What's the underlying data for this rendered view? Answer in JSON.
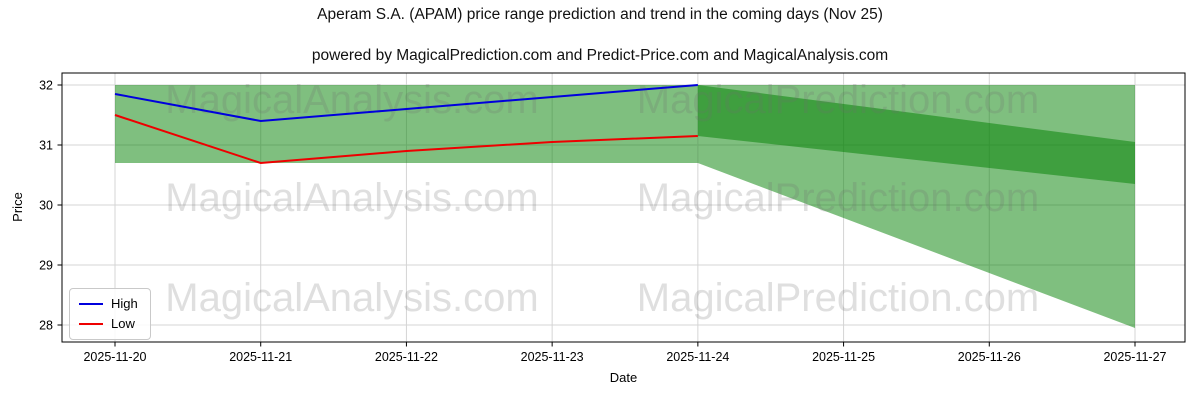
{
  "chart_data": {
    "type": "line",
    "title": "Aperam S.A. (APAM) price range prediction and trend in the coming days (Nov 25)",
    "subtitle": "powered by MagicalPrediction.com and Predict-Price.com and MagicalAnalysis.com",
    "xlabel": "Date",
    "ylabel": "Price",
    "categories": [
      "2025-11-20",
      "2025-11-21",
      "2025-11-22",
      "2025-11-23",
      "2025-11-24",
      "2025-11-25",
      "2025-11-26",
      "2025-11-27"
    ],
    "yticks": [
      28,
      29,
      30,
      31,
      32
    ],
    "ylim": [
      27.72,
      32.2
    ],
    "grid": true,
    "legend": {
      "position": "lower left",
      "entries": [
        "High",
        "Low"
      ]
    },
    "series": [
      {
        "name": "High",
        "color": "#0000dd",
        "days": [
          "2025-11-20",
          "2025-11-21",
          "2025-11-22",
          "2025-11-23",
          "2025-11-24"
        ],
        "values": [
          31.85,
          31.4,
          31.6,
          31.8,
          32.0
        ]
      },
      {
        "name": "Low",
        "color": "#ee0000",
        "days": [
          "2025-11-20",
          "2025-11-21",
          "2025-11-22",
          "2025-11-23",
          "2025-11-24"
        ],
        "values": [
          31.5,
          30.7,
          30.9,
          31.05,
          31.15
        ]
      }
    ],
    "bands": [
      {
        "name": "observed-range-band",
        "from": "2025-11-20",
        "to": "2025-11-24",
        "top": [
          32.0,
          32.0
        ],
        "bottom": [
          30.7,
          30.7
        ],
        "color": "rgba(0,128,0,0.5)"
      },
      {
        "name": "forecast-fan-band",
        "from": "2025-11-24",
        "to": "2025-11-27",
        "top": [
          32.0,
          32.0
        ],
        "bottom": [
          30.7,
          27.95
        ],
        "color": "rgba(0,128,0,0.5)"
      },
      {
        "name": "forecast-trend-band",
        "from": "2025-11-24",
        "to": "2025-11-27",
        "top": [
          32.0,
          31.05
        ],
        "bottom": [
          31.15,
          30.35
        ],
        "color": "rgba(0,128,0,0.5)"
      }
    ]
  },
  "watermark": {
    "left_text": "MagicalAnalysis.com",
    "right_text": "MagicalPrediction.com"
  },
  "colors": {
    "grid": "#d4d4d4",
    "spine": "#000000",
    "watermark": "rgba(110,110,110,0.22)"
  }
}
